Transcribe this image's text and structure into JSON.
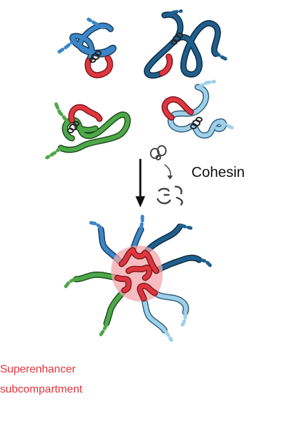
{
  "labels": {
    "cohesin": "Cohesin",
    "superenhancer_line1": "Superenhancer",
    "superenhancer_line2": "subcompartment"
  },
  "colors": {
    "blue": "#3b86c8",
    "dark_blue": "#1f5f8e",
    "light_blue": "#9fd0ea",
    "green": "#4ea84a",
    "red_enhancer": "#e0363f",
    "compartment_fill": "#f3a6aa",
    "caption": "#e2343d",
    "arrow": "#111111",
    "cohesin_ring": "#444444"
  },
  "icons": {
    "cohesin_ring": "cohesin-ring-icon",
    "cohesin_fragments": "cohesin-fragments-icon",
    "down_arrow": "down-arrow-icon"
  }
}
